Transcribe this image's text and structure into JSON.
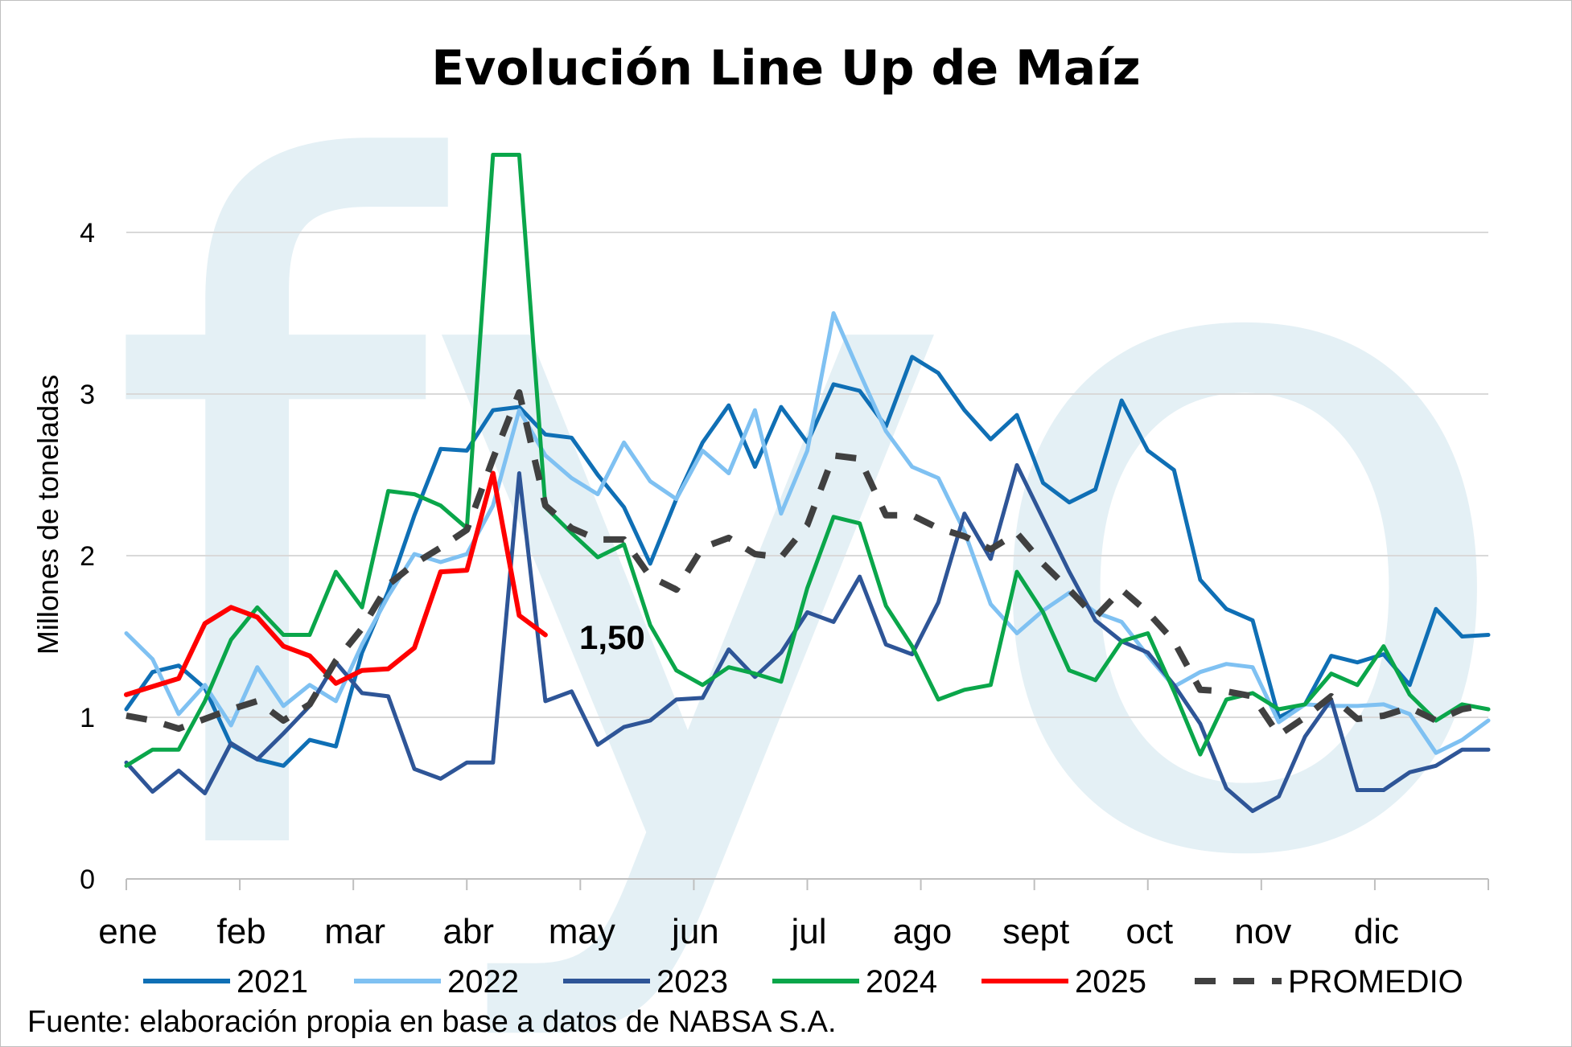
{
  "chart_data": {
    "type": "line",
    "title": "Evolución Line Up de Maíz",
    "ylabel": "Millones de toneladas",
    "xlabel": "",
    "ylim": [
      0,
      4.6
    ],
    "yticks": [
      "0",
      "1",
      "2",
      "3",
      "4"
    ],
    "month_labels": [
      "ene",
      "feb",
      "mar",
      "abr",
      "may",
      "jun",
      "jul",
      "ago",
      "sept",
      "oct",
      "nov",
      "dic"
    ],
    "source": "Fuente: elaboración propia en base a datos de NABSA S.A.",
    "annotation": "1,50",
    "watermark": "fyo",
    "grid": true,
    "legend_position": "bottom",
    "series": [
      {
        "name": "2021",
        "color": "#0f6fb5",
        "dash": false,
        "values": [
          1.05,
          1.28,
          1.32,
          1.18,
          0.83,
          0.74,
          0.7,
          0.86,
          0.82,
          1.4,
          1.78,
          2.25,
          2.66,
          2.65,
          2.9,
          2.92,
          2.75,
          2.73,
          2.5,
          2.3,
          1.95,
          2.35,
          2.7,
          2.93,
          2.55,
          2.92,
          2.7,
          3.06,
          3.02,
          2.8,
          3.23,
          3.13,
          2.9,
          2.72,
          2.87,
          2.45,
          2.33,
          2.41,
          2.96,
          2.65,
          2.53,
          1.85,
          1.67,
          1.6,
          1.0,
          1.08,
          1.38,
          1.34,
          1.39,
          1.2,
          1.67,
          1.5,
          1.51
        ]
      },
      {
        "name": "2022",
        "color": "#7fc1f2",
        "dash": false,
        "values": [
          1.52,
          1.36,
          1.02,
          1.2,
          0.95,
          1.31,
          1.07,
          1.2,
          1.1,
          1.45,
          1.75,
          2.01,
          1.96,
          2.01,
          2.31,
          2.9,
          2.62,
          2.48,
          2.38,
          2.7,
          2.46,
          2.35,
          2.65,
          2.51,
          2.9,
          2.26,
          2.65,
          3.5,
          3.13,
          2.77,
          2.55,
          2.48,
          2.15,
          1.7,
          1.52,
          1.66,
          1.77,
          1.65,
          1.59,
          1.38,
          1.19,
          1.28,
          1.33,
          1.31,
          0.97,
          1.08,
          1.07,
          1.07,
          1.08,
          1.02,
          0.78,
          0.86,
          0.98
        ]
      },
      {
        "name": "2023",
        "color": "#2e5597",
        "dash": false,
        "values": [
          0.72,
          0.54,
          0.67,
          0.53,
          0.84,
          0.74,
          0.9,
          1.07,
          1.34,
          1.15,
          1.13,
          0.68,
          0.62,
          0.72,
          0.72,
          2.51,
          1.1,
          1.16,
          0.83,
          0.94,
          0.98,
          1.11,
          1.12,
          1.42,
          1.25,
          1.4,
          1.65,
          1.59,
          1.87,
          1.45,
          1.39,
          1.71,
          2.26,
          1.98,
          2.56,
          2.23,
          1.9,
          1.6,
          1.47,
          1.4,
          1.2,
          0.96,
          0.56,
          0.42,
          0.51,
          0.88,
          1.11,
          0.55,
          0.55,
          0.66,
          0.7,
          0.8,
          0.8
        ]
      },
      {
        "name": "2024",
        "color": "#0aa64a",
        "dash": false,
        "values": [
          0.7,
          0.8,
          0.8,
          1.1,
          1.48,
          1.68,
          1.51,
          1.51,
          1.9,
          1.68,
          2.4,
          2.38,
          2.31,
          2.17,
          4.48,
          4.48,
          2.3,
          2.14,
          1.99,
          2.07,
          1.57,
          1.29,
          1.2,
          1.31,
          1.27,
          1.22,
          1.8,
          2.24,
          2.2,
          1.69,
          1.44,
          1.11,
          1.17,
          1.2,
          1.9,
          1.65,
          1.29,
          1.23,
          1.47,
          1.52,
          1.16,
          0.77,
          1.11,
          1.15,
          1.05,
          1.08,
          1.27,
          1.2,
          1.44,
          1.14,
          0.98,
          1.08,
          1.05
        ]
      },
      {
        "name": "2025",
        "color": "#ff0000",
        "dash": false,
        "values": [
          1.14,
          1.19,
          1.24,
          1.58,
          1.68,
          1.62,
          1.44,
          1.38,
          1.21,
          1.29,
          1.3,
          1.43,
          1.9,
          1.91,
          2.51,
          1.63,
          1.51
        ]
      },
      {
        "name": "PROMEDIO",
        "color": "#404040",
        "dash": true,
        "values": [
          1.01,
          0.98,
          0.93,
          0.99,
          1.05,
          1.1,
          0.98,
          1.08,
          1.35,
          1.55,
          1.82,
          1.95,
          2.05,
          2.16,
          2.6,
          3.01,
          2.31,
          2.17,
          2.1,
          2.1,
          1.87,
          1.79,
          2.05,
          2.11,
          2.01,
          1.99,
          2.19,
          2.62,
          2.6,
          2.25,
          2.25,
          2.17,
          2.12,
          2.04,
          2.14,
          1.95,
          1.79,
          1.62,
          1.79,
          1.65,
          1.47,
          1.17,
          1.16,
          1.13,
          0.89,
          1.0,
          1.13,
          0.99,
          1.01,
          1.06,
          0.98,
          1.05,
          1.08
        ]
      }
    ]
  }
}
